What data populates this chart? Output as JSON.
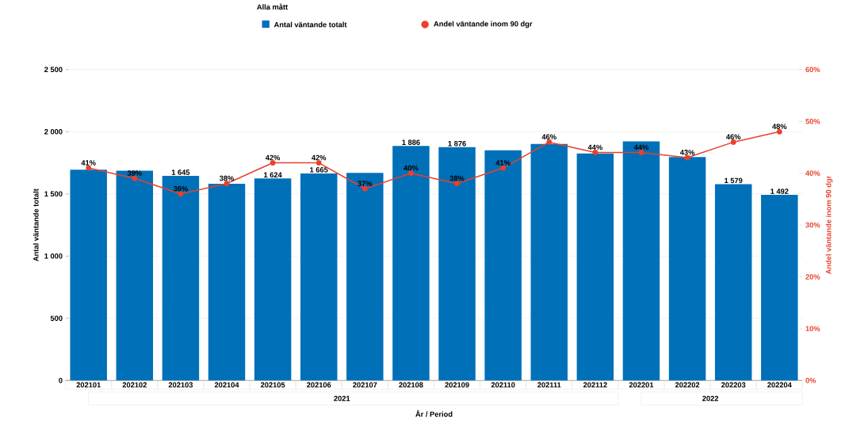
{
  "chart_data": {
    "type": "bar",
    "legend_title": "Alla mått",
    "legend": "top",
    "grid": "y",
    "xlabel": "År / Period",
    "ylabel": "Antal väntande totalt",
    "y2label": "Andel väntande inom 90 dgr",
    "categories": [
      "202101",
      "202102",
      "202103",
      "202104",
      "202105",
      "202106",
      "202107",
      "202108",
      "202109",
      "202110",
      "202111",
      "202112",
      "202201",
      "202202",
      "202203",
      "202204"
    ],
    "annotations": [
      "2021",
      "2022"
    ],
    "series": [
      {
        "name": "Antal väntande totalt",
        "color": "#0070b8",
        "values": [
          1695,
          1686,
          1645,
          1582,
          1624,
          1665,
          1669,
          1886,
          1876,
          1850,
          1902,
          1826,
          1922,
          1797,
          1579,
          1492
        ],
        "value_labels": [
          null,
          null,
          "1 645",
          null,
          "1 624",
          "1 665",
          null,
          "1 886",
          "1 876",
          null,
          null,
          null,
          null,
          null,
          "1 579",
          "1 492"
        ]
      },
      {
        "name": "Andel väntande inom 90 dgr",
        "type": "line",
        "axis": "y2",
        "color": "#e8412c",
        "marker": "circle",
        "values": [
          41,
          39,
          36,
          38,
          42,
          42,
          37,
          40,
          38,
          41,
          46,
          44,
          44,
          43,
          46,
          48
        ],
        "value_labels": [
          "41%",
          "39%",
          "36%",
          "38%",
          "42%",
          "42%",
          "37%",
          "40%",
          "38%",
          "41%",
          "46%",
          "44%",
          "44%",
          "43%",
          "46%",
          "48%"
        ]
      }
    ],
    "ylim": [
      0,
      2500
    ],
    "yticks": [
      {
        "value": 0,
        "label": "0"
      },
      {
        "value": 500,
        "label": "500"
      },
      {
        "value": 1000,
        "label": "1 000"
      },
      {
        "value": 1500,
        "label": "1 500"
      },
      {
        "value": 2000,
        "label": "2 000"
      },
      {
        "value": 2500,
        "label": "2 500"
      }
    ],
    "y2lim": [
      0,
      60
    ],
    "y2ticks": [
      {
        "value": 0,
        "label": "0%"
      },
      {
        "value": 10,
        "label": "10%"
      },
      {
        "value": 20,
        "label": "20%"
      },
      {
        "value": 30,
        "label": "30%"
      },
      {
        "value": 40,
        "label": "40%"
      },
      {
        "value": 50,
        "label": "50%"
      },
      {
        "value": 60,
        "label": "60%"
      }
    ]
  }
}
